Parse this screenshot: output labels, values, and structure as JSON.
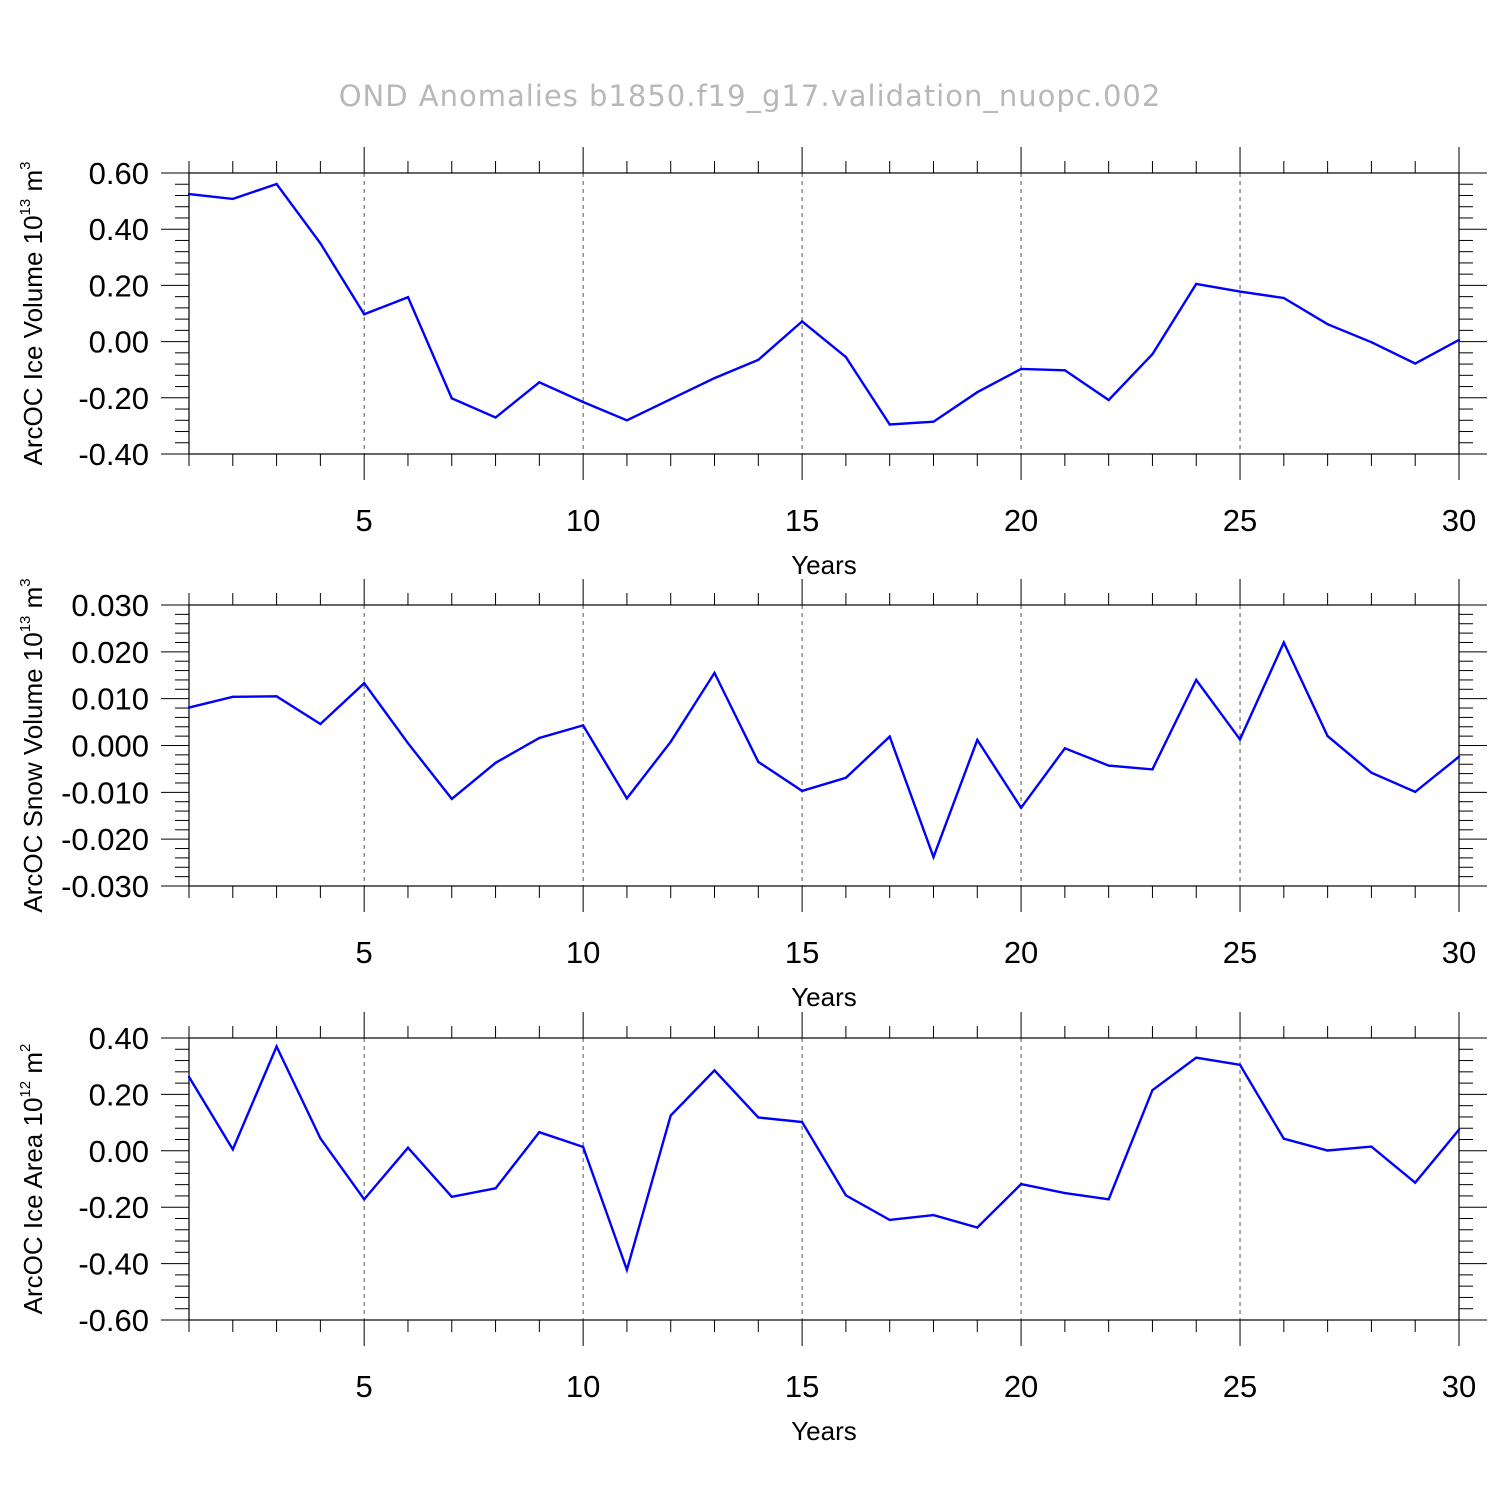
{
  "title": "OND Anomalies b1850.f19_g17.validation_nuopc.002",
  "chart_data": [
    {
      "type": "line",
      "ylabel": {
        "main": "ArcOC Ice Volume 10",
        "exp": "13",
        "unit": " m",
        "unit_exp": "3"
      },
      "xlabel": "Years",
      "xlim": [
        1,
        30
      ],
      "ylim": [
        -0.4,
        0.6
      ],
      "yticks": [
        0.6,
        0.4,
        0.2,
        0.0,
        -0.2,
        -0.4
      ],
      "ytick_labels": [
        "0.60",
        "0.40",
        "0.20",
        "0.00",
        "-0.20",
        "-0.40"
      ],
      "xticks": [
        5,
        10,
        15,
        20,
        25,
        30
      ],
      "xtick_labels": [
        "5",
        "10",
        "15",
        "20",
        "25",
        "30"
      ],
      "grid_x": [
        5,
        10,
        15,
        20,
        25
      ],
      "color": "#0000ff",
      "x": [
        1,
        2,
        3,
        4,
        5,
        6,
        7,
        8,
        9,
        10,
        11,
        12,
        13,
        14,
        15,
        16,
        17,
        18,
        19,
        20,
        21,
        22,
        23,
        24,
        25,
        26,
        27,
        28,
        29,
        30
      ],
      "values": [
        0.525,
        0.508,
        0.561,
        0.35,
        0.097,
        0.158,
        -0.202,
        -0.27,
        -0.145,
        -0.215,
        -0.28,
        -0.205,
        -0.13,
        -0.065,
        0.072,
        -0.055,
        -0.295,
        -0.285,
        -0.18,
        -0.097,
        -0.102,
        -0.208,
        -0.045,
        0.205,
        0.178,
        0.155,
        0.062,
        -0.002,
        -0.078,
        0.006
      ]
    },
    {
      "type": "line",
      "ylabel": {
        "main": "ArcOC Snow Volume 10",
        "exp": "13",
        "unit": " m",
        "unit_exp": "3"
      },
      "xlabel": "Years",
      "xlim": [
        1,
        30
      ],
      "ylim": [
        -0.03,
        0.03
      ],
      "yticks": [
        0.03,
        0.02,
        0.01,
        0.0,
        -0.01,
        -0.02,
        -0.03
      ],
      "ytick_labels": [
        "0.030",
        "0.020",
        "0.010",
        "0.000",
        "-0.010",
        "-0.020",
        "-0.030"
      ],
      "xticks": [
        5,
        10,
        15,
        20,
        25,
        30
      ],
      "xtick_labels": [
        "5",
        "10",
        "15",
        "20",
        "25",
        "30"
      ],
      "grid_x": [
        5,
        10,
        15,
        20,
        25
      ],
      "color": "#0000ff",
      "x": [
        1,
        2,
        3,
        4,
        5,
        6,
        7,
        8,
        9,
        10,
        11,
        12,
        13,
        14,
        15,
        16,
        17,
        18,
        19,
        20,
        21,
        22,
        23,
        24,
        25,
        26,
        27,
        28,
        29,
        30
      ],
      "values": [
        0.0081,
        0.0104,
        0.0105,
        0.0046,
        0.0133,
        0.0005,
        -0.0114,
        -0.0037,
        0.0016,
        0.0043,
        -0.0113,
        0.0008,
        0.0155,
        -0.0035,
        -0.0097,
        -0.0069,
        0.0019,
        -0.0238,
        0.0012,
        -0.0133,
        -0.0006,
        -0.0043,
        -0.0051,
        0.014,
        0.0013,
        0.022,
        0.002,
        -0.0058,
        -0.0099,
        -0.0024
      ]
    },
    {
      "type": "line",
      "ylabel": {
        "main": "ArcOC Ice Area 10",
        "exp": "12",
        "unit": " m",
        "unit_exp": "2"
      },
      "xlabel": "Years",
      "xlim": [
        1,
        30
      ],
      "ylim": [
        -0.6,
        0.4
      ],
      "yticks": [
        0.4,
        0.2,
        0.0,
        -0.2,
        -0.4,
        -0.6
      ],
      "ytick_labels": [
        "0.40",
        "0.20",
        "0.00",
        "-0.20",
        "-0.40",
        "-0.60"
      ],
      "xticks": [
        5,
        10,
        15,
        20,
        25,
        30
      ],
      "xtick_labels": [
        "5",
        "10",
        "15",
        "20",
        "25",
        "30"
      ],
      "grid_x": [
        5,
        10,
        15,
        20,
        25
      ],
      "color": "#0000ff",
      "x": [
        1,
        2,
        3,
        4,
        5,
        6,
        7,
        8,
        9,
        10,
        11,
        12,
        13,
        14,
        15,
        16,
        17,
        18,
        19,
        20,
        21,
        22,
        23,
        24,
        25,
        26,
        27,
        28,
        29,
        30
      ],
      "values": [
        0.262,
        0.005,
        0.37,
        0.044,
        -0.172,
        0.011,
        -0.163,
        -0.133,
        0.066,
        0.014,
        -0.422,
        0.125,
        0.285,
        0.118,
        0.102,
        -0.158,
        -0.245,
        -0.228,
        -0.272,
        -0.118,
        -0.15,
        -0.172,
        0.215,
        0.33,
        0.305,
        0.043,
        0.001,
        0.015,
        -0.113,
        0.075
      ]
    }
  ]
}
